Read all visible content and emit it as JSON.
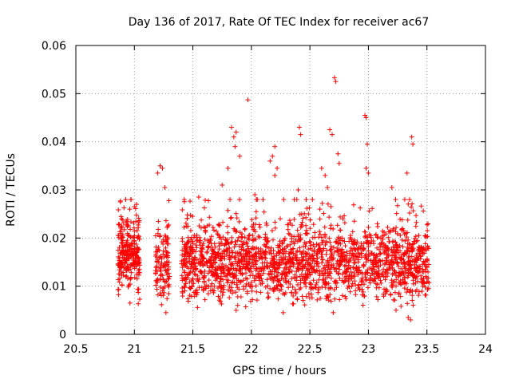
{
  "chart_data": {
    "type": "scatter",
    "title": "Day 136 of 2017, Rate Of TEC Index for receiver ac67",
    "xlabel": "GPS time / hours",
    "ylabel": "ROTI / TECUs",
    "xlim": [
      20.5,
      24
    ],
    "ylim": [
      0,
      0.06
    ],
    "xticks": [
      20.5,
      21,
      21.5,
      22,
      22.5,
      23,
      23.5,
      24
    ],
    "xtick_labels": [
      "20.5",
      "21",
      "21.5",
      "22",
      "22.5",
      "23",
      "23.5",
      "24"
    ],
    "yticks": [
      0,
      0.01,
      0.02,
      0.03,
      0.04,
      0.05,
      0.06
    ],
    "ytick_labels": [
      "0",
      "0.01",
      "0.02",
      "0.03",
      "0.04",
      "0.05",
      "0.06"
    ],
    "grid": true,
    "marker": "+",
    "color": "#ff0000",
    "series": [
      {
        "name": "ROTI",
        "clusters": [
          {
            "x_range": [
              20.86,
              21.05
            ],
            "y_center": 0.0165,
            "y_spread": 0.0045,
            "count": 260
          },
          {
            "x_range": [
              21.18,
              21.3
            ],
            "y_center": 0.014,
            "y_spread": 0.005,
            "count": 120
          },
          {
            "x_range": [
              21.4,
              23.52
            ],
            "y_center": 0.0145,
            "y_spread": 0.0048,
            "count": 2000
          }
        ],
        "points": [
          [
            20.88,
            0.0275
          ],
          [
            20.96,
            0.026
          ],
          [
            21.0,
            0.0265
          ],
          [
            21.2,
            0.0335
          ],
          [
            21.22,
            0.035
          ],
          [
            21.24,
            0.0345
          ],
          [
            21.26,
            0.0305
          ],
          [
            21.55,
            0.0285
          ],
          [
            21.75,
            0.031
          ],
          [
            21.8,
            0.0345
          ],
          [
            21.83,
            0.043
          ],
          [
            21.85,
            0.041
          ],
          [
            21.87,
            0.042
          ],
          [
            21.9,
            0.037
          ],
          [
            21.86,
            0.039
          ],
          [
            21.97,
            0.0487
          ],
          [
            22.03,
            0.029
          ],
          [
            22.1,
            0.028
          ],
          [
            22.16,
            0.036
          ],
          [
            22.18,
            0.037
          ],
          [
            22.2,
            0.039
          ],
          [
            22.22,
            0.0345
          ],
          [
            22.2,
            0.033
          ],
          [
            22.41,
            0.043
          ],
          [
            22.42,
            0.0415
          ],
          [
            22.4,
            0.03
          ],
          [
            22.6,
            0.0345
          ],
          [
            22.63,
            0.033
          ],
          [
            22.65,
            0.0305
          ],
          [
            22.67,
            0.0425
          ],
          [
            22.69,
            0.0415
          ],
          [
            22.71,
            0.0533
          ],
          [
            22.72,
            0.0525
          ],
          [
            22.74,
            0.0375
          ],
          [
            22.75,
            0.0355
          ],
          [
            22.97,
            0.0455
          ],
          [
            22.98,
            0.045
          ],
          [
            22.99,
            0.0395
          ],
          [
            22.98,
            0.0345
          ],
          [
            23.0,
            0.0335
          ],
          [
            23.2,
            0.0305
          ],
          [
            23.33,
            0.0335
          ],
          [
            23.37,
            0.041
          ],
          [
            23.38,
            0.0395
          ],
          [
            23.34,
            0.0035
          ],
          [
            23.36,
            0.003
          ],
          [
            21.27,
            0.0045
          ],
          [
            21.87,
            0.005
          ]
        ]
      }
    ]
  }
}
